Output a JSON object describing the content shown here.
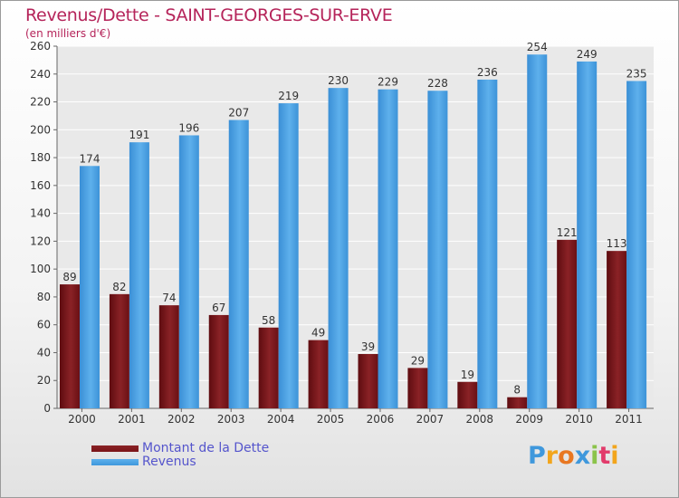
{
  "header": {
    "title": "Revenus/Dette - SAINT-GEORGES-SUR-ERVE",
    "subtitle": "(en milliers d'€)"
  },
  "chart_data": {
    "type": "bar",
    "categories": [
      "2000",
      "2001",
      "2002",
      "2003",
      "2004",
      "2005",
      "2006",
      "2007",
      "2008",
      "2009",
      "2010",
      "2011"
    ],
    "series": [
      {
        "name": "Montant de la Dette",
        "color": "#7a1418",
        "values": [
          89,
          82,
          74,
          67,
          58,
          49,
          39,
          29,
          19,
          8,
          121,
          113
        ]
      },
      {
        "name": "Revenus",
        "color": "#3f98dc",
        "values": [
          174,
          191,
          196,
          207,
          219,
          230,
          229,
          228,
          236,
          254,
          249,
          235
        ]
      }
    ],
    "ylim": [
      0,
      260
    ],
    "yticks": [
      0,
      20,
      40,
      60,
      80,
      100,
      120,
      140,
      160,
      180,
      200,
      220,
      240,
      260
    ],
    "grid": true,
    "legend_position": "bottom-left"
  },
  "legend": {
    "items": [
      "Montant de la Dette",
      "Revenus"
    ]
  },
  "logo": {
    "letters": [
      "P",
      "r",
      "o",
      "x",
      "i",
      "t",
      "i"
    ],
    "colors": [
      "#3f98dc",
      "#f2a51c",
      "#e87722",
      "#3f98dc",
      "#8bc34a",
      "#e23b6b",
      "#f2a51c"
    ]
  }
}
